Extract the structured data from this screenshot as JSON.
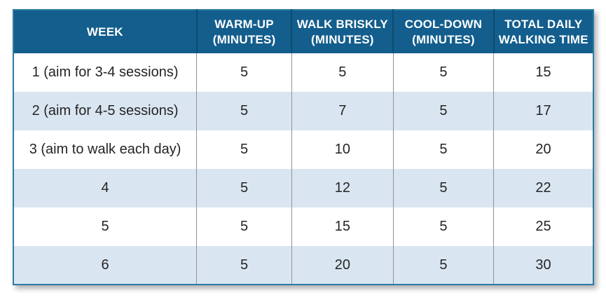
{
  "table": {
    "title": "walking-program-schedule",
    "headers": [
      "WEEK",
      "WARM-UP\n(MINUTES)",
      "WALK BRISKLY\n(MINUTES)",
      "COOL-DOWN\n(MINUTES)",
      "TOTAL DAILY\nWALKING TIME"
    ],
    "rows": [
      [
        "1 (aim for 3-4 sessions)",
        "5",
        "5",
        "5",
        "15"
      ],
      [
        "2 (aim for 4-5 sessions)",
        "5",
        "7",
        "5",
        "17"
      ],
      [
        "3 (aim to walk each day)",
        "5",
        "10",
        "5",
        "20"
      ],
      [
        "4",
        "5",
        "12",
        "5",
        "22"
      ],
      [
        "5",
        "5",
        "15",
        "5",
        "25"
      ],
      [
        "6",
        "5",
        "20",
        "5",
        "30"
      ]
    ]
  },
  "colors": {
    "header_bg": "#135e8d",
    "header_text": "#ffffff",
    "header_divider": "#0f4c70",
    "band_row_bg": "#d9e6f1",
    "plain_row_bg": "#ffffff",
    "body_divider": "#8f9294",
    "outer_border": "#2a7ca4",
    "body_text": "#262425"
  }
}
